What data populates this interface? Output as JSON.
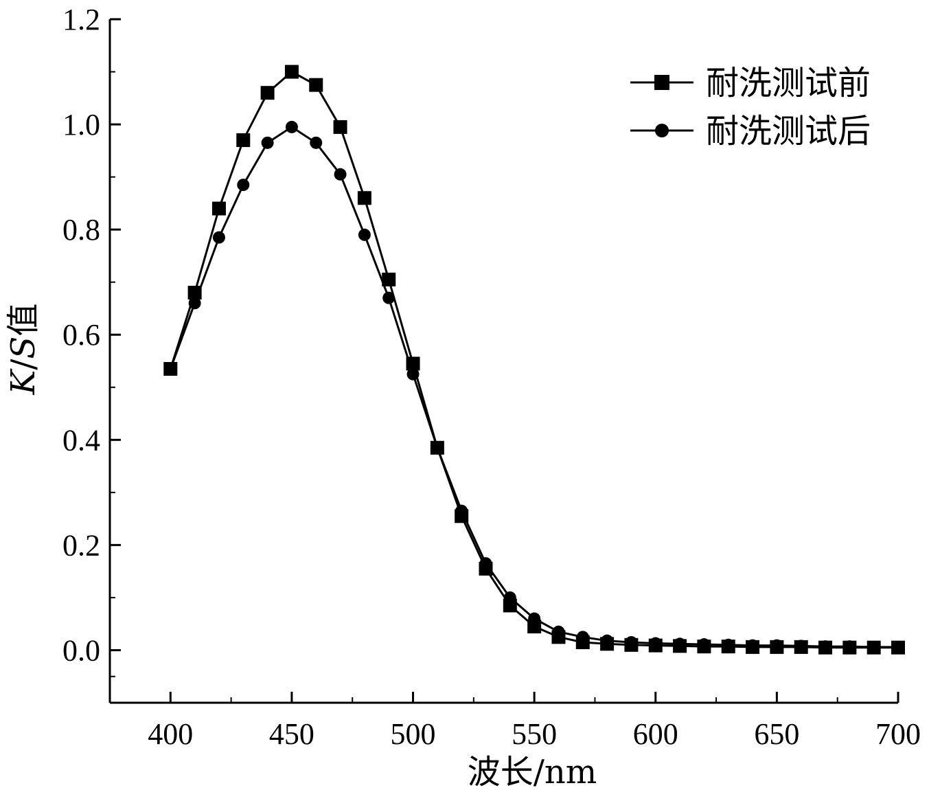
{
  "chart_data": {
    "type": "line",
    "title": "",
    "xlabel": "波长/nm",
    "ylabel": "K/S值",
    "ylabel_parts": {
      "italic": "K",
      "slash": "/",
      "italic2": "S",
      "suffix": "值"
    },
    "xlim": [
      375,
      700
    ],
    "ylim": [
      -0.1,
      1.2
    ],
    "xticks": [
      400,
      450,
      500,
      550,
      600,
      650,
      700
    ],
    "yticks": [
      0.0,
      0.2,
      0.4,
      0.6,
      0.8,
      1.0,
      1.2
    ],
    "ytick_labels": [
      "0.0",
      "0.2",
      "0.4",
      "0.6",
      "0.8",
      "1.0",
      "1.2"
    ],
    "grid": false,
    "legend_position": "top-right",
    "x": [
      400,
      410,
      420,
      430,
      440,
      450,
      460,
      470,
      480,
      490,
      500,
      510,
      520,
      530,
      540,
      550,
      560,
      570,
      580,
      590,
      600,
      610,
      620,
      630,
      640,
      650,
      660,
      670,
      680,
      690,
      700
    ],
    "series": [
      {
        "name": "耐洗测试前",
        "marker": "square",
        "values": [
          0.535,
          0.68,
          0.84,
          0.97,
          1.06,
          1.1,
          1.075,
          0.995,
          0.86,
          0.705,
          0.545,
          0.385,
          0.255,
          0.155,
          0.085,
          0.045,
          0.025,
          0.015,
          0.012,
          0.01,
          0.009,
          0.008,
          0.007,
          0.007,
          0.006,
          0.006,
          0.006,
          0.005,
          0.005,
          0.005,
          0.005
        ]
      },
      {
        "name": "耐洗测试后",
        "marker": "circle",
        "values": [
          0.535,
          0.66,
          0.785,
          0.885,
          0.965,
          0.995,
          0.965,
          0.905,
          0.79,
          0.67,
          0.525,
          0.385,
          0.265,
          0.165,
          0.1,
          0.06,
          0.035,
          0.025,
          0.018,
          0.015,
          0.013,
          0.012,
          0.011,
          0.01,
          0.009,
          0.009,
          0.008,
          0.007,
          0.007,
          0.006,
          0.006
        ]
      }
    ]
  },
  "colors": {
    "line": "#000000",
    "background": "#ffffff"
  }
}
